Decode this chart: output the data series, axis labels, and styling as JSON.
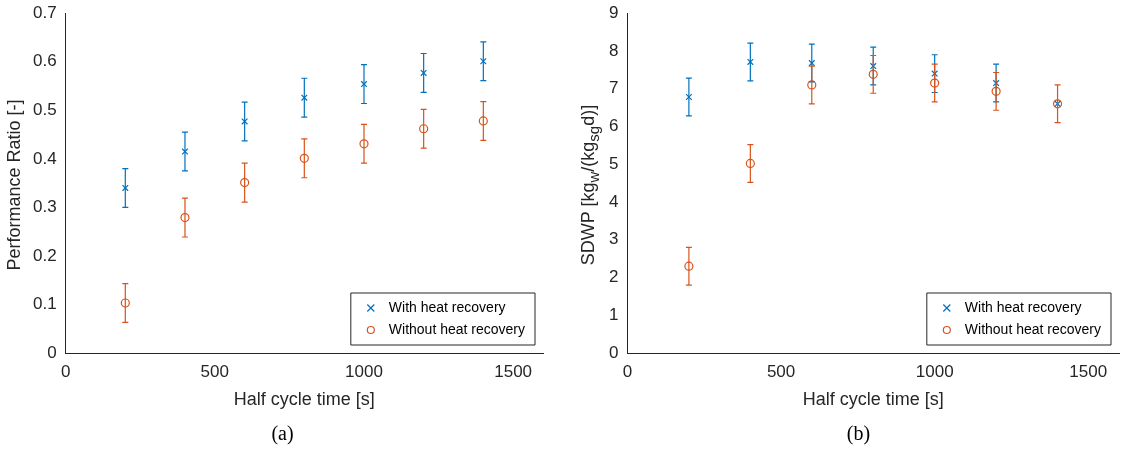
{
  "chart_data": [
    {
      "type": "scatter",
      "xlabel": "Half cycle time [s]",
      "ylabel": "Performance Ratio [-]",
      "xlim": [
        0,
        1600
      ],
      "xticks": [
        0,
        500,
        1000,
        1500
      ],
      "ylim": [
        0,
        0.7
      ],
      "yticks": [
        0,
        0.1,
        0.2,
        0.3,
        0.4,
        0.5,
        0.6,
        0.7
      ],
      "legend": "bottom right",
      "annotations": [
        "(a)"
      ],
      "series": [
        {
          "name": "With heat recovery",
          "color": "#0072bd",
          "marker": "cross",
          "x": [
            200,
            400,
            600,
            800,
            1000,
            1200,
            1400
          ],
          "values": [
            0.34,
            0.415,
            0.477,
            0.526,
            0.554,
            0.577,
            0.601
          ],
          "errors": [
            0.04,
            0.04,
            0.04,
            0.04,
            0.04,
            0.04,
            0.04
          ]
        },
        {
          "name": "Without heat recovery",
          "color": "#d95319",
          "marker": "circle",
          "x": [
            200,
            400,
            600,
            800,
            1000,
            1200,
            1400
          ],
          "values": [
            0.103,
            0.279,
            0.351,
            0.401,
            0.431,
            0.462,
            0.478
          ],
          "errors": [
            0.04,
            0.04,
            0.04,
            0.04,
            0.04,
            0.04,
            0.04
          ]
        }
      ]
    },
    {
      "type": "scatter",
      "xlabel": "Half cycle time [s]",
      "ylabel": "SDWP [kg$_{w}$/(kg$_{sg}$d)]",
      "xlim": [
        0,
        1600
      ],
      "xticks": [
        0,
        500,
        1000,
        1500
      ],
      "ylim": [
        0,
        9
      ],
      "yticks": [
        0,
        1,
        2,
        3,
        4,
        5,
        6,
        7,
        8,
        9
      ],
      "legend": "bottom right",
      "annotations": [
        "(b)"
      ],
      "series": [
        {
          "name": "With heat recovery",
          "color": "#0072bd",
          "marker": "cross",
          "x": [
            200,
            400,
            600,
            800,
            1000,
            1200,
            1400
          ],
          "values": [
            6.78,
            7.71,
            7.68,
            7.6,
            7.4,
            7.15,
            6.6
          ],
          "errors": [
            0.5,
            0.5,
            0.5,
            0.5,
            0.5,
            0.5,
            null
          ]
        },
        {
          "name": "Without heat recovery",
          "color": "#d95319",
          "marker": "circle",
          "x": [
            200,
            400,
            600,
            800,
            1000,
            1200,
            1400
          ],
          "values": [
            2.3,
            5.02,
            7.1,
            7.38,
            7.15,
            6.93,
            6.6
          ],
          "errors": [
            0.5,
            0.5,
            0.5,
            0.5,
            0.5,
            0.5,
            0.5
          ]
        }
      ]
    }
  ]
}
